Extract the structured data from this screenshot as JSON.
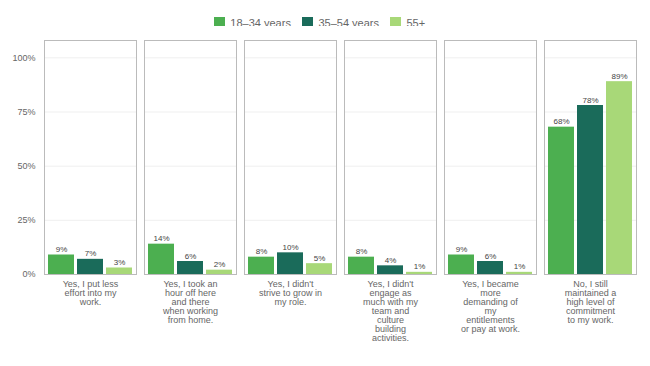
{
  "chart_data": {
    "type": "bar",
    "categories": [
      "Yes, I put less\neffort into my\nwork.",
      "Yes, I took an\nhour off here\nand there\nwhen working\nfrom home.",
      "Yes, I didn't\nstrive to grow in\nmy role.",
      "Yes, I didn't\nengage as\nmuch with my\nteam and\nculture\nbuilding\nactivities.",
      "Yes, I became\nmore\ndemanding of\nmy\nentitlements\nor pay at work.",
      "No, I still\nmaintained a\nhigh level of\ncommitment\nto my work."
    ],
    "series": [
      {
        "name": "18–34 years",
        "color": "#4caf50",
        "values": [
          9,
          14,
          8,
          8,
          9,
          68
        ],
        "value_labels": [
          "9%",
          "14%",
          "8%",
          "8%",
          "9%",
          "68%"
        ]
      },
      {
        "name": "35–54 years",
        "color": "#1a6b5a",
        "values": [
          7,
          6,
          10,
          4,
          6,
          78
        ],
        "value_labels": [
          "7%",
          "6%",
          "10%",
          "4%",
          "6%",
          "78%"
        ]
      },
      {
        "name": "55+",
        "color": "#a8d878",
        "values": [
          3,
          2,
          5,
          1,
          1,
          89
        ],
        "value_labels": [
          "3%",
          "2%",
          "5%",
          "1%",
          "1%",
          "89%"
        ]
      }
    ],
    "ylim": [
      0,
      108
    ],
    "yticks": [
      {
        "value": 0,
        "label": "0%"
      },
      {
        "value": 25,
        "label": "25%"
      },
      {
        "value": 50,
        "label": "50%"
      },
      {
        "value": 75,
        "label": "75%"
      },
      {
        "value": 100,
        "label": "100%"
      }
    ],
    "grid": true,
    "legend": "top",
    "data_labels": true
  }
}
